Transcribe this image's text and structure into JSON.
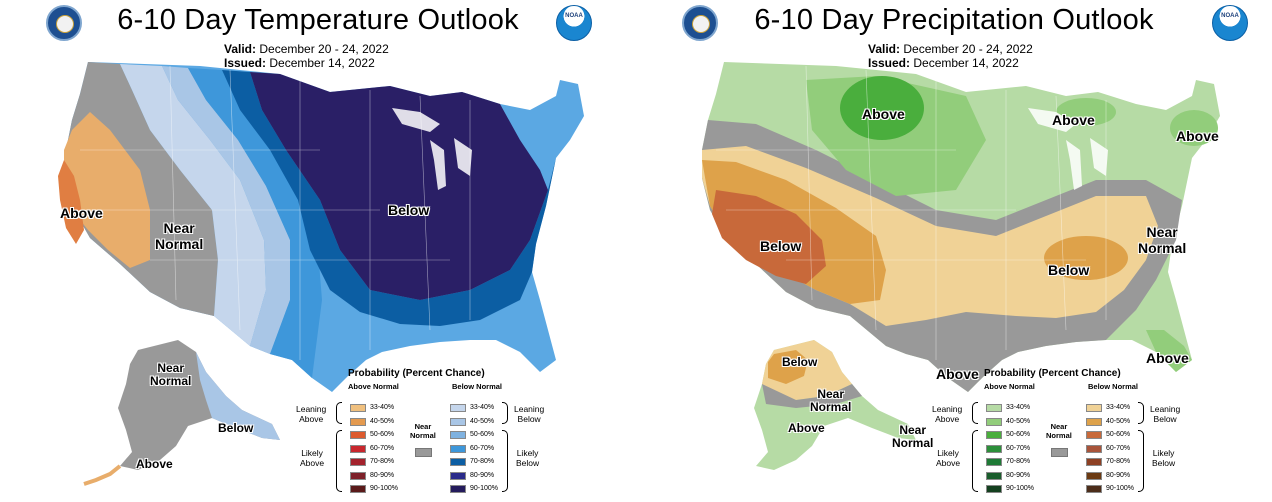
{
  "temperature": {
    "title": "6-10 Day Temperature Outlook",
    "valid_label": "Valid:",
    "valid_value": "December 20 - 24, 2022",
    "issued_label": "Issued:",
    "issued_value": "December 14, 2022",
    "map_labels": {
      "above_west": "Above",
      "near_normal": "Near\nNormal",
      "below_main": "Below",
      "alaska_near": "Near\nNormal",
      "alaska_below": "Below",
      "alaska_above": "Above"
    },
    "legend": {
      "title": "Probability (Percent Chance)",
      "head_above": "Above Normal",
      "head_below": "Below Normal",
      "near_label": "Near\nNormal",
      "side_leaning_above": "Leaning\nAbove",
      "side_likely_above": "Likely\nAbove",
      "side_leaning_below": "Leaning\nBelow",
      "side_likely_below": "Likely\nBelow",
      "ranges": [
        "33-40%",
        "40-50%",
        "50-60%",
        "60-70%",
        "70-80%",
        "80-90%",
        "90-100%"
      ],
      "above_colors": [
        "#f0c07e",
        "#e49a4f",
        "#dc5a2e",
        "#c8272e",
        "#a3222c",
        "#7d2029",
        "#5a1a1a"
      ],
      "below_colors": [
        "#c5d6ec",
        "#a9c6e6",
        "#7fb2e0",
        "#3e97da",
        "#0c5ea3",
        "#2a2b8a",
        "#241b5c"
      ],
      "near_color": "#999999"
    }
  },
  "precipitation": {
    "title": "6-10 Day Precipitation Outlook",
    "valid_label": "Valid:",
    "valid_value": "December 20 - 24, 2022",
    "issued_label": "Issued:",
    "issued_value": "December 14, 2022",
    "map_labels": {
      "above_north": "Above",
      "above_greatlakes": "Above",
      "above_northeast": "Above",
      "below_west": "Below",
      "below_south": "Below",
      "near_normal": "Near\nNormal",
      "above_gulf": "Above",
      "above_florida": "Above",
      "alaska_below": "Below",
      "alaska_near_1": "Near\nNormal",
      "alaska_above": "Above",
      "alaska_near_2": "Near\nNormal"
    },
    "legend": {
      "title": "Probability (Percent Chance)",
      "head_above": "Above Normal",
      "head_below": "Below Normal",
      "near_label": "Near\nNormal",
      "side_leaning_above": "Leaning\nAbove",
      "side_likely_above": "Likely\nAbove",
      "side_leaning_below": "Leaning\nBelow",
      "side_likely_below": "Likely\nBelow",
      "ranges": [
        "33-40%",
        "40-50%",
        "50-60%",
        "60-70%",
        "70-80%",
        "80-90%",
        "90-100%"
      ],
      "above_colors": [
        "#b6dba5",
        "#92cd7b",
        "#4aae3d",
        "#2c8f3a",
        "#1e7a36",
        "#1a5d2c",
        "#14401f"
      ],
      "below_colors": [
        "#f0d296",
        "#dea24a",
        "#c8693a",
        "#a8543a",
        "#8d4023",
        "#6b3a12",
        "#4c2d1a"
      ],
      "near_color": "#999999"
    }
  }
}
